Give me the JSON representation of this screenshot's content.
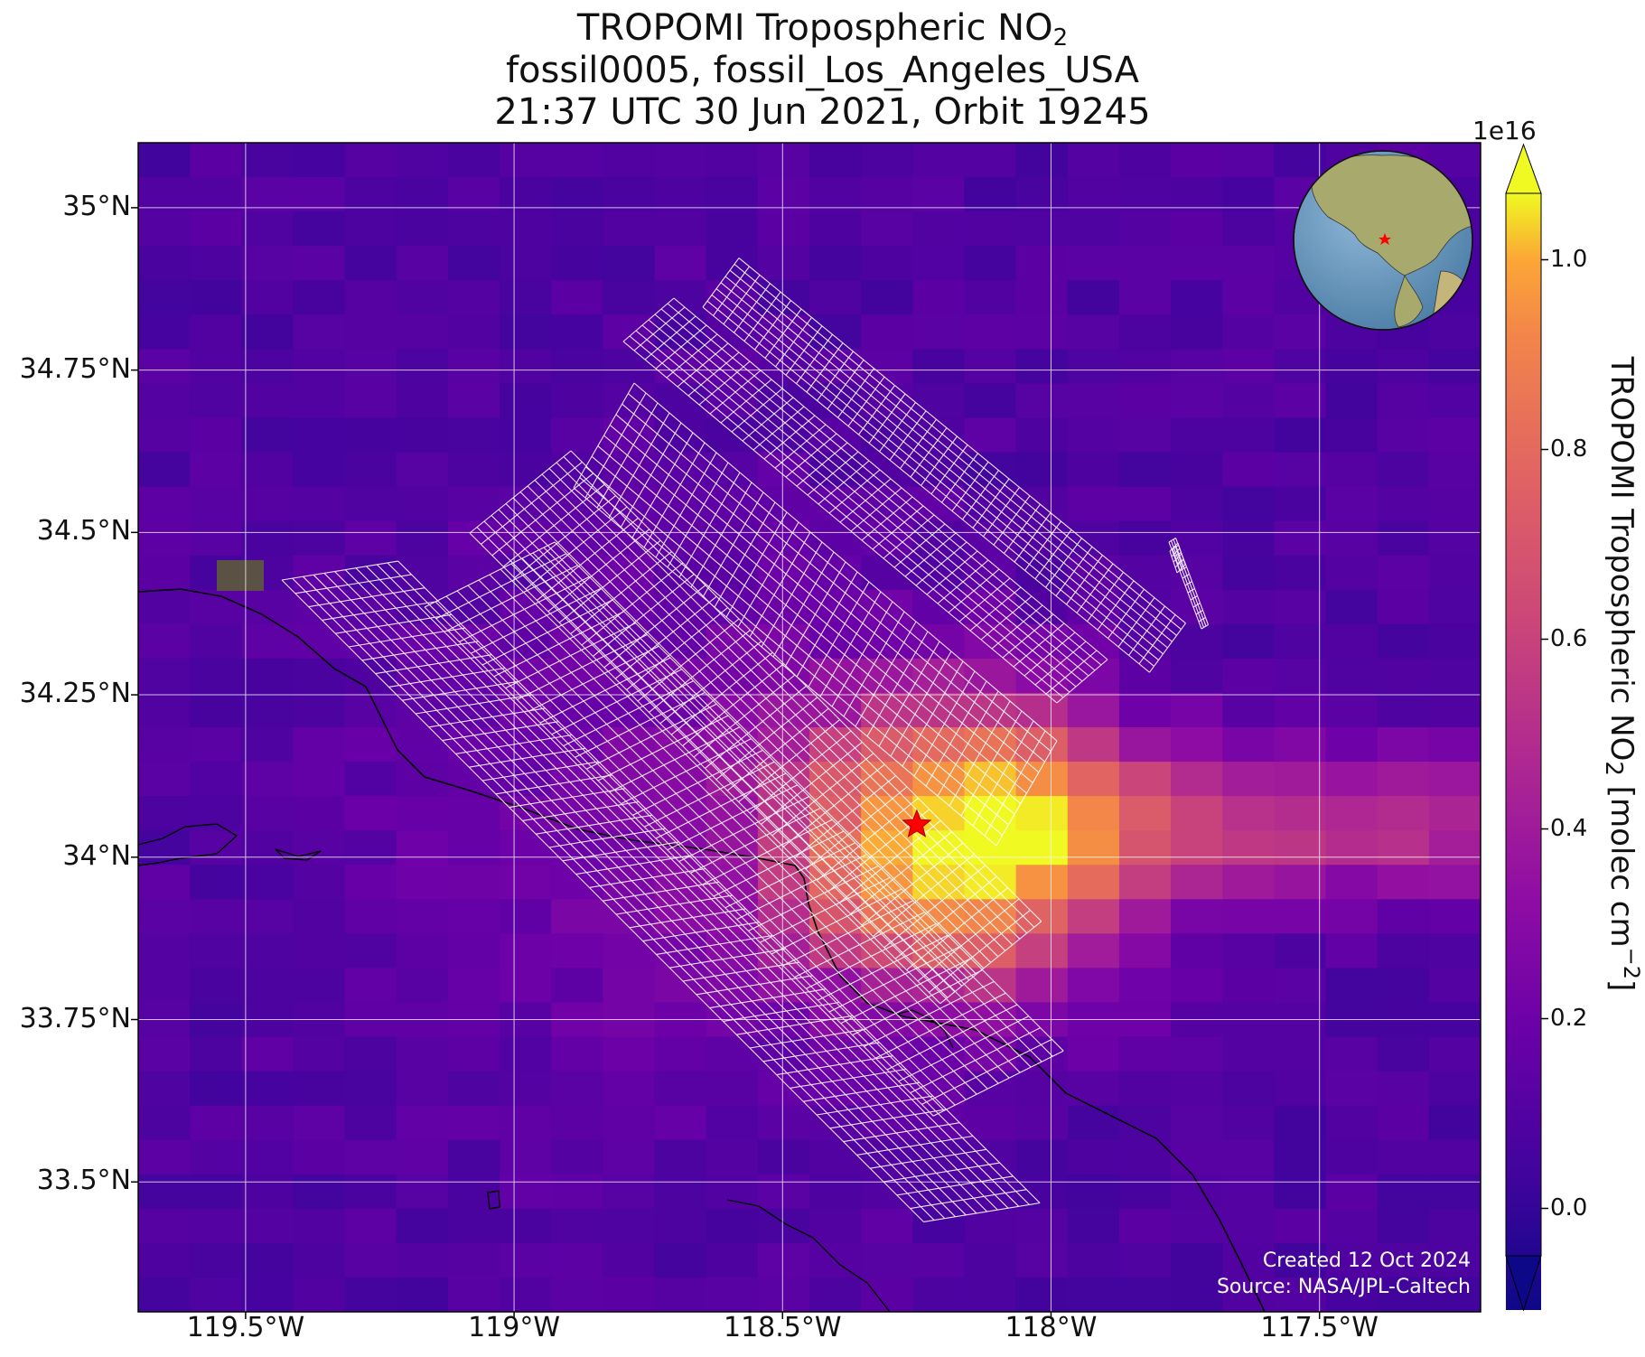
{
  "title": {
    "line1_main": "TROPOMI Tropospheric NO",
    "line1_sub": "2",
    "line2": "fossil0005, fossil_Los_Angeles_USA",
    "line3": "21:37 UTC 30 Jun 2021, Orbit 19245"
  },
  "map": {
    "lon_range": [
      -119.7,
      -117.2
    ],
    "lat_range": [
      33.3,
      35.1
    ],
    "grid": true,
    "x_ticks": [
      {
        "value": -119.5,
        "label": "119.5°W"
      },
      {
        "value": -119.0,
        "label": "119°W"
      },
      {
        "value": -118.5,
        "label": "118.5°W"
      },
      {
        "value": -118.0,
        "label": "118°W"
      },
      {
        "value": -117.5,
        "label": "117.5°W"
      }
    ],
    "y_ticks": [
      {
        "value": 35.0,
        "label": "35°N"
      },
      {
        "value": 34.75,
        "label": "34.75°N"
      },
      {
        "value": 34.5,
        "label": "34.5°N"
      },
      {
        "value": 34.25,
        "label": "34.25°N"
      },
      {
        "value": 34.0,
        "label": "34°N"
      },
      {
        "value": 33.75,
        "label": "33.75°N"
      },
      {
        "value": 33.5,
        "label": "33.5°N"
      }
    ],
    "target_marker": {
      "lon": -118.25,
      "lat": 34.05,
      "color": "#ff0000",
      "icon": "star-icon"
    },
    "inset": {
      "type": "globe",
      "icon": "globe-icon",
      "ocean_color": "#5b8fb5",
      "land_color": "#9aa56a"
    },
    "credit_line1": "Created 12 Oct 2024",
    "credit_line2": "Source: NASA/JPL-Caltech"
  },
  "colorbar": {
    "colormap": "plasma",
    "exponent_label": "1e16",
    "label_main": "TROPOMI Tropospheric NO",
    "label_sub": "2",
    "label_units": " [molec cm",
    "label_sup": "−2",
    "label_end": "]",
    "range": [
      -0.05,
      1.07
    ],
    "ticks": [
      {
        "value": 0.0,
        "label": "0.0"
      },
      {
        "value": 0.2,
        "label": "0.2"
      },
      {
        "value": 0.4,
        "label": "0.4"
      },
      {
        "value": 0.6,
        "label": "0.6"
      },
      {
        "value": 0.8,
        "label": "0.8"
      },
      {
        "value": 1.0,
        "label": "1.0"
      }
    ]
  }
}
